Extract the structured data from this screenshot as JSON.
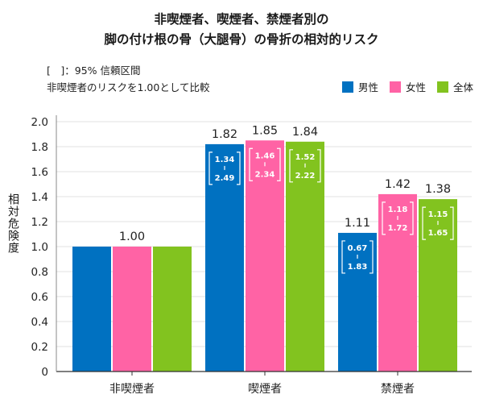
{
  "title_line1": "非喫煙者、喫煙者、禁煙者別の",
  "title_line2": "脚の付け根の骨（大腿骨）の骨折の相対的リスク",
  "notes": {
    "ci_note": "[　]：95% 信頼区間",
    "baseline_note": "非喫煙者のリスクを1.00として比較"
  },
  "legend": [
    {
      "label": "男性",
      "color": "#0071c1"
    },
    {
      "label": "女性",
      "color": "#ff63a5"
    },
    {
      "label": "全体",
      "color": "#82c31f"
    }
  ],
  "chart_data": {
    "type": "bar",
    "ylabel": "相対危険度",
    "ylim": [
      0,
      2.0
    ],
    "yticks": [
      "0",
      "0.2",
      "0.4",
      "0.6",
      "0.8",
      "1.0",
      "1.2",
      "1.4",
      "1.6",
      "1.8",
      "2.0"
    ],
    "categories": [
      "非喫煙者",
      "喫煙者",
      "禁煙者"
    ],
    "series": [
      {
        "name": "男性",
        "color": "#0071c1",
        "values": [
          1.0,
          1.82,
          1.11
        ],
        "ci": [
          null,
          [
            "1.34",
            "2.49"
          ],
          [
            "0.67",
            "1.83"
          ]
        ]
      },
      {
        "name": "女性",
        "color": "#ff63a5",
        "values": [
          1.0,
          1.85,
          1.42
        ],
        "ci": [
          null,
          [
            "1.46",
            "2.34"
          ],
          [
            "1.18",
            "1.72"
          ]
        ]
      },
      {
        "name": "全体",
        "color": "#82c31f",
        "values": [
          1.0,
          1.84,
          1.38
        ],
        "ci": [
          null,
          [
            "1.52",
            "2.22"
          ],
          [
            "1.15",
            "1.65"
          ]
        ]
      }
    ],
    "value_labels": [
      [
        "1.00"
      ],
      [
        "1.82",
        "1.85",
        "1.84"
      ],
      [
        "1.11",
        "1.42",
        "1.38"
      ]
    ]
  }
}
